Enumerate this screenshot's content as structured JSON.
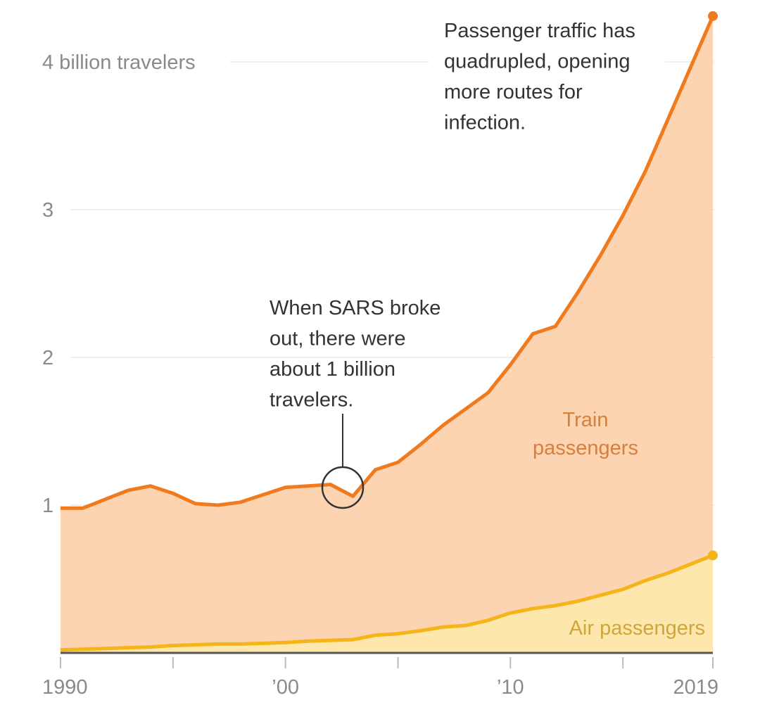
{
  "chart_data": {
    "type": "area",
    "title": "",
    "xlabel": "",
    "ylabel": "",
    "x": [
      1990,
      1991,
      1992,
      1993,
      1994,
      1995,
      1996,
      1997,
      1998,
      1999,
      2000,
      2001,
      2002,
      2003,
      2004,
      2005,
      2006,
      2007,
      2008,
      2009,
      2010,
      2011,
      2012,
      2013,
      2014,
      2015,
      2016,
      2017,
      2018,
      2019
    ],
    "xlim": [
      1990,
      2019
    ],
    "ylim": [
      0,
      4.35
    ],
    "x_ticks": [
      1990,
      1995,
      2000,
      2005,
      2010,
      2015,
      2019
    ],
    "x_tick_labels": [
      {
        "value": 1990,
        "label": "1990"
      },
      {
        "value": 2000,
        "label": "’00"
      },
      {
        "value": 2010,
        "label": "’10"
      },
      {
        "value": 2019,
        "label": "2019"
      }
    ],
    "y_ticks": [
      {
        "value": 1,
        "label": "1"
      },
      {
        "value": 2,
        "label": "2"
      },
      {
        "value": 3,
        "label": "3"
      },
      {
        "value": 4,
        "label": "4 billion travelers"
      }
    ],
    "grid": true,
    "units": "billion travelers",
    "series": [
      {
        "name": "Train passengers",
        "label_lines": [
          "Train",
          "passengers"
        ],
        "stacked": true,
        "total_values": [
          0.98,
          0.98,
          1.04,
          1.1,
          1.13,
          1.08,
          1.01,
          1.0,
          1.02,
          1.07,
          1.12,
          1.13,
          1.14,
          1.06,
          1.24,
          1.29,
          1.41,
          1.54,
          1.65,
          1.76,
          1.95,
          2.16,
          2.21,
          2.44,
          2.69,
          2.96,
          3.26,
          3.61,
          3.96,
          4.31
        ],
        "line_color": "#f07b1f",
        "fill_color": "#fdd4b2",
        "label_color": "#d5803f"
      },
      {
        "name": "Air passengers",
        "label_lines": [
          "Air passengers"
        ],
        "values": [
          0.02,
          0.025,
          0.03,
          0.035,
          0.04,
          0.05,
          0.055,
          0.06,
          0.06,
          0.065,
          0.07,
          0.08,
          0.085,
          0.09,
          0.12,
          0.13,
          0.15,
          0.175,
          0.185,
          0.22,
          0.27,
          0.3,
          0.32,
          0.35,
          0.39,
          0.43,
          0.49,
          0.54,
          0.6,
          0.66
        ],
        "line_color": "#f5b417",
        "fill_color": "#fde7ad",
        "label_color": "#cfa63a"
      }
    ],
    "annotations": [
      {
        "id": "sars",
        "lines": [
          "When SARS broke",
          "out, there were",
          "about 1 billion",
          "travelers."
        ],
        "target_year": 2003,
        "target_value": 1.06,
        "marker": "circle"
      },
      {
        "id": "quadrupled",
        "lines": [
          "Passenger traffic has",
          "quadrupled, opening",
          "more routes for",
          "infection."
        ]
      }
    ]
  }
}
